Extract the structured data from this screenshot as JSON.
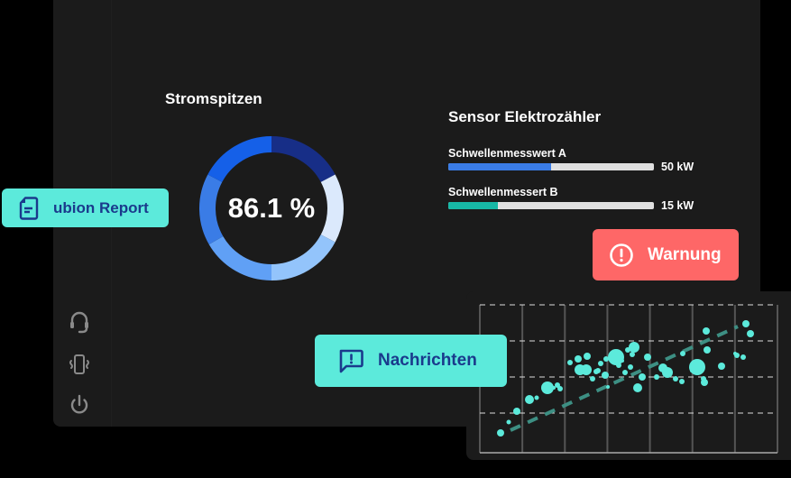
{
  "stromspitzen": {
    "title": "Stromspitzen",
    "value_label": "86.1 %",
    "value": 86.1,
    "segments": [
      {
        "color": "#172e87",
        "from": 0,
        "to": 62
      },
      {
        "color": "#dbe9fc",
        "from": 62,
        "to": 118
      },
      {
        "color": "#93c4fb",
        "from": 118,
        "to": 180
      },
      {
        "color": "#60a0f5",
        "from": 180,
        "to": 240
      },
      {
        "color": "#3a7ce6",
        "from": 240,
        "to": 298
      },
      {
        "color": "#1560e8",
        "from": 298,
        "to": 360
      }
    ]
  },
  "sensor": {
    "title": "Sensor Elektrozähler",
    "bars": [
      {
        "label": "Schwellenmesswert A",
        "value_label": "50 kW",
        "percent": 50,
        "color": "#3a7ce6"
      },
      {
        "label": "Schwellenmessert B",
        "value_label": "15 kW",
        "percent": 24,
        "color": "#17b8a6"
      }
    ]
  },
  "buttons": {
    "report": {
      "label": "ubion Report",
      "bg": "#5ceadb",
      "fg": "#1a3a8c"
    },
    "warning": {
      "label": "Warnung",
      "bg": "#fe6767",
      "fg": "#ffffff"
    },
    "messages": {
      "label": "Nachrichten",
      "bg": "#5ceadb",
      "fg": "#1a3a8c"
    }
  },
  "sidebar": {
    "items": [
      {
        "name": "headset"
      },
      {
        "name": "vibrate-phone"
      },
      {
        "name": "power"
      }
    ]
  },
  "chart_data": {
    "type": "scatter",
    "title": "",
    "xlabel": "",
    "ylabel": "",
    "grid": true,
    "points_color": "#5ceadb",
    "trendline": {
      "color": "#3d8f83",
      "style": "dashed"
    },
    "points": [
      [
        555,
        480,
        4
      ],
      [
        564,
        468,
        2.5
      ],
      [
        573,
        456,
        4
      ],
      [
        587,
        443,
        5
      ],
      [
        595,
        441,
        2.5
      ],
      [
        607,
        430,
        7
      ],
      [
        614,
        430,
        2
      ],
      [
        621,
        431,
        3
      ],
      [
        632,
        402,
        3
      ],
      [
        618,
        427,
        3
      ],
      [
        643,
        410,
        6
      ],
      [
        641,
        398,
        4
      ],
      [
        650,
        410,
        6
      ],
      [
        651,
        395,
        4
      ],
      [
        657,
        420,
        3
      ],
      [
        661,
        412,
        3
      ],
      [
        663,
        411,
        3
      ],
      [
        666,
        403,
        3
      ],
      [
        671,
        416,
        4
      ],
      [
        672,
        398,
        3
      ],
      [
        674,
        429,
        2
      ],
      [
        683,
        396,
        9
      ],
      [
        686,
        405,
        3
      ],
      [
        690,
        400,
        2
      ],
      [
        693,
        413,
        3
      ],
      [
        696,
        388,
        3
      ],
      [
        699,
        407,
        3
      ],
      [
        701,
        393,
        3
      ],
      [
        703,
        385,
        6
      ],
      [
        707,
        430,
        5
      ],
      [
        712,
        418,
        4
      ],
      [
        718,
        396,
        4
      ],
      [
        728,
        418,
        3
      ],
      [
        735,
        408,
        5
      ],
      [
        736,
        408,
        2
      ],
      [
        740,
        413,
        6
      ],
      [
        749,
        420,
        3
      ],
      [
        757,
        392,
        3
      ],
      [
        756,
        423,
        3
      ],
      [
        767,
        411,
        2
      ],
      [
        773,
        407,
        9
      ],
      [
        781,
        424,
        4
      ],
      [
        780,
        420,
        3
      ],
      [
        783,
        367,
        4
      ],
      [
        784,
        388,
        4
      ],
      [
        800,
        406,
        4
      ],
      [
        815,
        392,
        2
      ],
      [
        817,
        394,
        3
      ],
      [
        824,
        396,
        3
      ],
      [
        827,
        359,
        4
      ],
      [
        832,
        370,
        4
      ]
    ]
  }
}
